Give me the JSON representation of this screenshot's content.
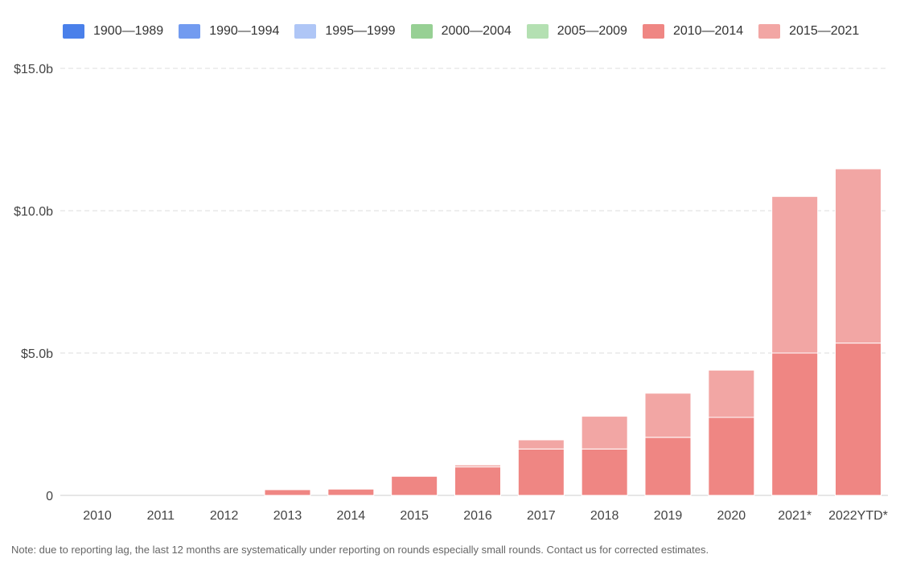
{
  "legend": [
    {
      "label": "1900—1989",
      "color": "#4a80ea"
    },
    {
      "label": "1990—1994",
      "color": "#729bf0"
    },
    {
      "label": "1995—1999",
      "color": "#afc6f6"
    },
    {
      "label": "2000—2004",
      "color": "#97d094"
    },
    {
      "label": "2005—2009",
      "color": "#b4e0b2"
    },
    {
      "label": "2010—2014",
      "color": "#ef8683"
    },
    {
      "label": "2015—2021",
      "color": "#f2a6a4"
    }
  ],
  "note": "Note: due to reporting lag, the last 12 months are systematically under reporting on rounds especially small rounds. Contact us for corrected estimates.",
  "chart_data": {
    "type": "bar",
    "stacked": true,
    "categories": [
      "2010",
      "2011",
      "2012",
      "2013",
      "2014",
      "2015",
      "2016",
      "2017",
      "2018",
      "2019",
      "2020",
      "2021*",
      "2022YTD*"
    ],
    "series": [
      {
        "name": "1900—1989",
        "color": "#4a80ea",
        "values": [
          0,
          0,
          0,
          0,
          0,
          0,
          0,
          0,
          0,
          0,
          0,
          0,
          0
        ]
      },
      {
        "name": "1990—1994",
        "color": "#729bf0",
        "values": [
          0,
          0,
          0,
          0,
          0,
          0,
          0,
          0,
          0,
          0,
          0,
          0,
          0
        ]
      },
      {
        "name": "1995—1999",
        "color": "#afc6f6",
        "values": [
          0,
          0,
          0,
          0,
          0,
          0,
          0,
          0,
          0,
          0,
          0,
          0,
          0
        ]
      },
      {
        "name": "2000—2004",
        "color": "#97d094",
        "values": [
          0,
          0,
          0,
          0,
          0,
          0,
          0,
          0,
          0,
          0,
          0,
          0,
          0
        ]
      },
      {
        "name": "2005—2009",
        "color": "#b4e0b2",
        "values": [
          0,
          0,
          0,
          0,
          0,
          0,
          0,
          0,
          0,
          0,
          0,
          0,
          0
        ]
      },
      {
        "name": "2010—2014",
        "color": "#ef8683",
        "values": [
          0,
          0,
          0,
          0.2,
          0.22,
          0.67,
          1.0,
          1.63,
          1.63,
          2.04,
          2.74,
          5.0,
          5.35
        ]
      },
      {
        "name": "2015—2021",
        "color": "#f2a6a4",
        "values": [
          0,
          0,
          0,
          0,
          0,
          0,
          0.07,
          0.32,
          1.15,
          1.55,
          1.66,
          5.5,
          6.12
        ]
      }
    ],
    "y_ticks": [
      {
        "value": 0,
        "label": "0"
      },
      {
        "value": 5,
        "label": "$5.0b"
      },
      {
        "value": 10,
        "label": "$10.0b"
      },
      {
        "value": 15,
        "label": "$15.0b"
      }
    ],
    "ylim": [
      0,
      15
    ],
    "grid": true,
    "legend_position": "top-left"
  }
}
